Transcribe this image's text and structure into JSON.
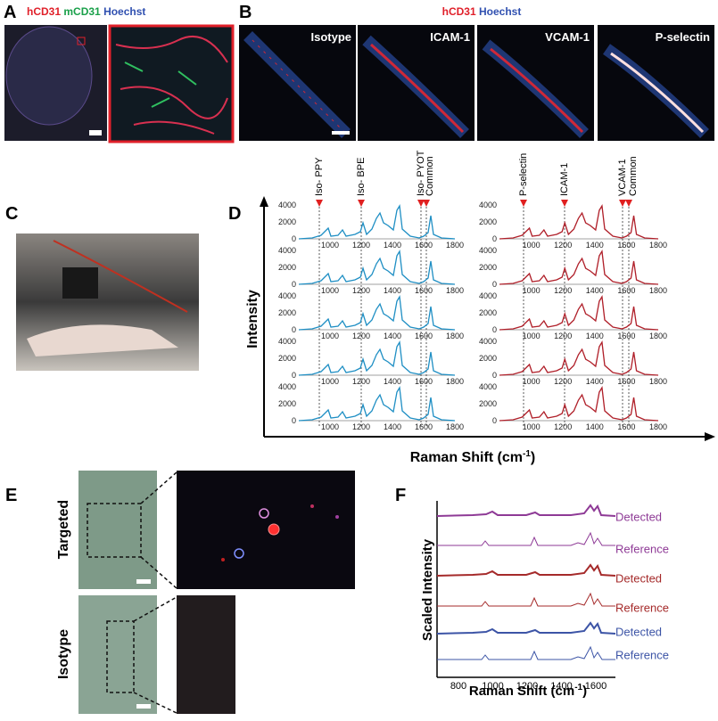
{
  "panel_a": {
    "label": "A",
    "stain": [
      "hCD31",
      "mCD31",
      "Hoechst"
    ]
  },
  "panel_b": {
    "label": "B",
    "stain": [
      "hCD31",
      "Hoechst"
    ],
    "images": [
      "Isotype",
      "ICAM-1",
      "VCAM-1",
      "P-selectin"
    ]
  },
  "peak_labels": {
    "left": [
      "Iso- PPY",
      "Iso- BPE",
      "Iso- PYOT",
      "Common"
    ],
    "right": [
      "P-selectin",
      "ICAM-1",
      "VCAM-1",
      "Common"
    ]
  },
  "panel_c": {
    "label": "C"
  },
  "panel_d": {
    "label": "D",
    "y_label": "Intensity",
    "x_label": "Raman Shift (cm",
    "x_label_sup": "-1",
    "x_label_end": ")",
    "yticks": [
      0,
      2000,
      4000
    ],
    "xticks": [
      1000,
      1200,
      1400,
      1600,
      1800
    ]
  },
  "panel_e": {
    "label": "E",
    "rows": [
      "Targeted",
      "Isotype"
    ]
  },
  "panel_f": {
    "label": "F",
    "y_label": "Scaled Intensity",
    "x_label": "Raman Shift (cm",
    "x_label_sup": "-1",
    "x_label_end": ")",
    "xticks": [
      800,
      1000,
      1200,
      1400,
      1600
    ],
    "traces": [
      "Detected",
      "Reference",
      "Detected",
      "Reference",
      "Detected",
      "Reference"
    ]
  }
}
